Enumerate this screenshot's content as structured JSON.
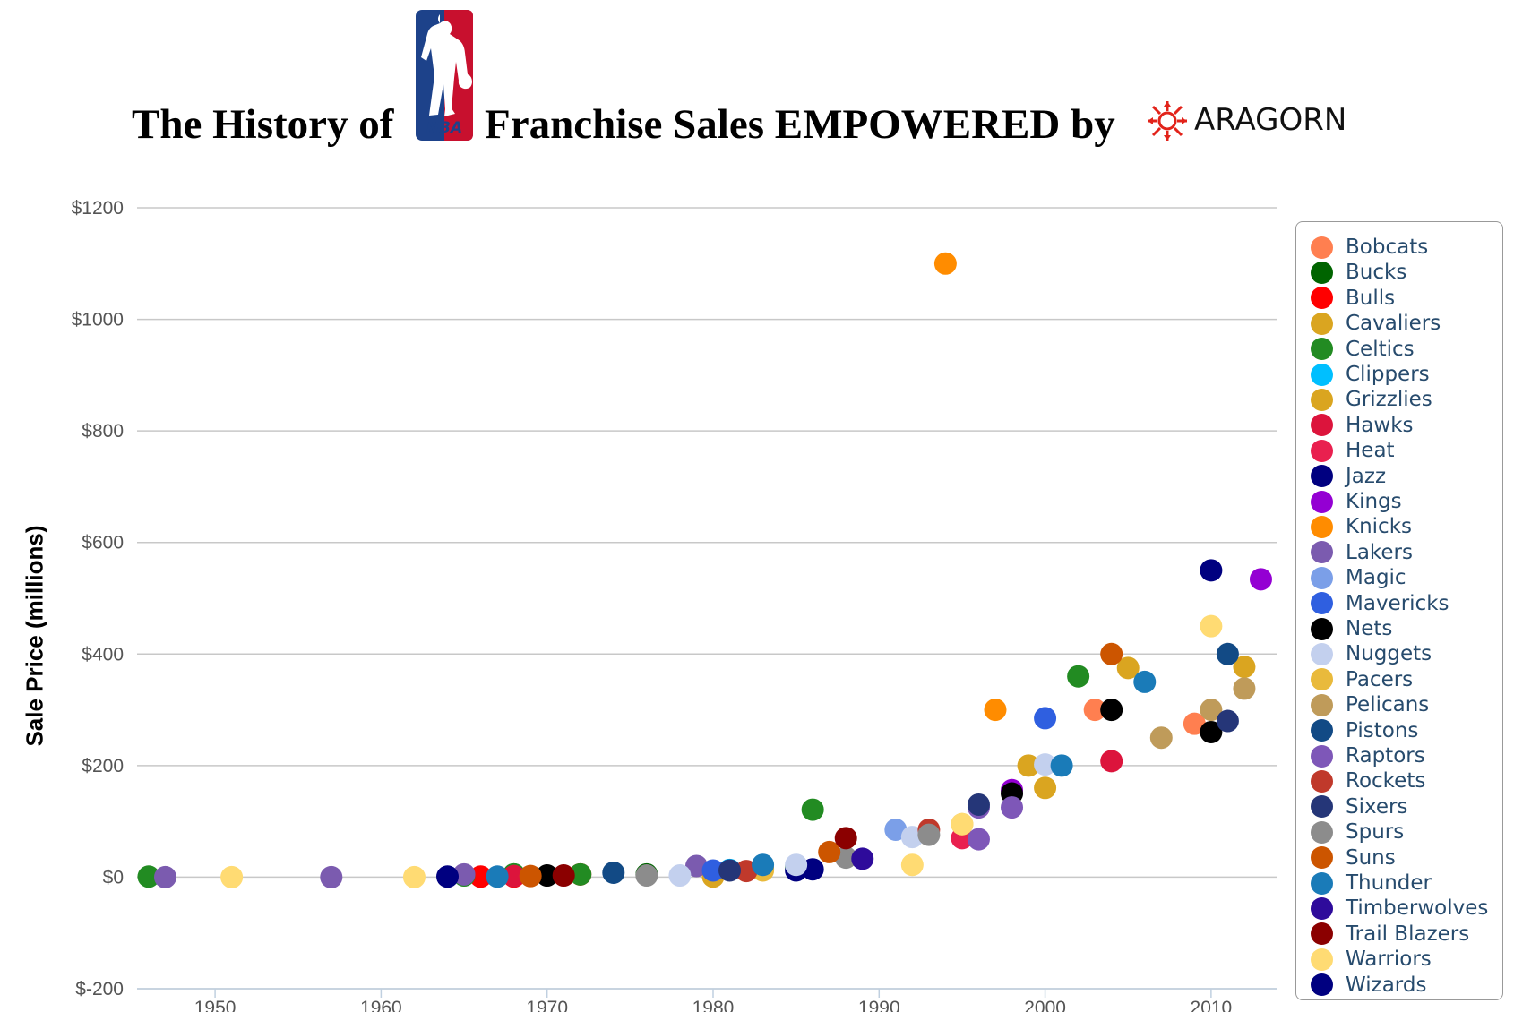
{
  "header": {
    "title_part1": "The History of",
    "title_part2": "Franchise Sales EMPOWERED by",
    "nba_logo_text": "NBA",
    "aragorn_logo_text": "ARAGORN"
  },
  "chart_data": {
    "type": "scatter",
    "title": "The History of NBA Franchise Sales EMPOWERED by ARAGORN",
    "xlabel": "",
    "ylabel": "Sale Price (millions)",
    "xlim": [
      1945.3,
      2014
    ],
    "ylim": [
      -200,
      1200
    ],
    "xticks": [
      1950,
      1960,
      1970,
      1980,
      1990,
      2000,
      2010
    ],
    "yticks": [
      -200,
      0,
      200,
      400,
      600,
      800,
      1000,
      1200
    ],
    "ytick_labels": [
      "$-200",
      "$0",
      "$200",
      "$400",
      "$600",
      "$800",
      "$1000",
      "$1200"
    ],
    "grid": "horizontal",
    "legend_position": "right",
    "series": [
      {
        "name": "Bobcats",
        "color": "#FF7F50",
        "points": [
          [
            2003,
            300
          ],
          [
            2009,
            275
          ]
        ]
      },
      {
        "name": "Bucks",
        "color": "#006400",
        "points": [
          [
            1968,
            5
          ],
          [
            1976,
            5
          ],
          [
            1985,
            18
          ]
        ]
      },
      {
        "name": "Bulls",
        "color": "#FF0000",
        "points": [
          [
            1966,
            1
          ],
          [
            1968,
            1
          ],
          [
            1972,
            5
          ]
        ]
      },
      {
        "name": "Cavaliers",
        "color": "#DAA520",
        "points": [
          [
            1980,
            1
          ],
          [
            1983,
            15
          ],
          [
            2005,
            375
          ]
        ]
      },
      {
        "name": "Celtics",
        "color": "#228B22",
        "points": [
          [
            1946,
            1
          ],
          [
            1965,
            3
          ],
          [
            1968,
            5
          ],
          [
            1972,
            5
          ],
          [
            1986,
            121
          ],
          [
            2002,
            360
          ]
        ]
      },
      {
        "name": "Clippers",
        "color": "#00BFFF",
        "points": [
          [
            1981,
            13
          ]
        ]
      },
      {
        "name": "Grizzlies",
        "color": "#DAA520",
        "points": [
          [
            1999,
            200
          ],
          [
            2000,
            160
          ],
          [
            2012,
            377
          ]
        ]
      },
      {
        "name": "Hawks",
        "color": "#DC143C",
        "points": [
          [
            1968,
            2
          ],
          [
            2004,
            208
          ]
        ]
      },
      {
        "name": "Heat",
        "color": "#E9204F",
        "points": [
          [
            1995,
            70
          ]
        ]
      },
      {
        "name": "Jazz",
        "color": "#000080",
        "points": [
          [
            1985,
            12
          ],
          [
            1986,
            14
          ]
        ]
      },
      {
        "name": "Kings",
        "color": "#9400D3",
        "points": [
          [
            1998,
            156
          ],
          [
            2013,
            534
          ]
        ]
      },
      {
        "name": "Knicks",
        "color": "#FF8C00",
        "points": [
          [
            1994,
            1100
          ],
          [
            1997,
            300
          ]
        ]
      },
      {
        "name": "Lakers",
        "color": "#7B5BAF",
        "points": [
          [
            1947,
            0
          ],
          [
            1957,
            0
          ],
          [
            1965,
            5
          ],
          [
            1979,
            20
          ]
        ]
      },
      {
        "name": "Magic",
        "color": "#7B9FE8",
        "points": [
          [
            1991,
            85
          ]
        ]
      },
      {
        "name": "Mavericks",
        "color": "#2F5FE0",
        "points": [
          [
            1980,
            12
          ],
          [
            2000,
            285
          ]
        ]
      },
      {
        "name": "Nets",
        "color": "#000000",
        "points": [
          [
            1970,
            3
          ],
          [
            1998,
            150
          ],
          [
            2004,
            300
          ],
          [
            2010,
            260
          ]
        ]
      },
      {
        "name": "Nuggets",
        "color": "#C3D0EE",
        "points": [
          [
            1978,
            3
          ],
          [
            1985,
            22
          ],
          [
            1992,
            72
          ],
          [
            2000,
            202
          ]
        ]
      },
      {
        "name": "Pacers",
        "color": "#E9BA3C",
        "points": [
          [
            1983,
            12
          ],
          [
            1995,
            95
          ]
        ]
      },
      {
        "name": "Pelicans",
        "color": "#BF9B5A",
        "points": [
          [
            2007,
            250
          ],
          [
            2010,
            300
          ],
          [
            2012,
            338
          ]
        ]
      },
      {
        "name": "Pistons",
        "color": "#124A85",
        "points": [
          [
            1974,
            8
          ],
          [
            2011,
            400
          ]
        ]
      },
      {
        "name": "Raptors",
        "color": "#7E57B8",
        "points": [
          [
            1996,
            125
          ],
          [
            1998,
            125
          ],
          [
            1996,
            68
          ]
        ]
      },
      {
        "name": "Rockets",
        "color": "#C0392B",
        "points": [
          [
            1982,
            11
          ],
          [
            1993,
            85
          ]
        ]
      },
      {
        "name": "Sixers",
        "color": "#253678",
        "points": [
          [
            1981,
            12
          ],
          [
            1996,
            130
          ],
          [
            2011,
            280
          ]
        ]
      },
      {
        "name": "Spurs",
        "color": "#8C8C8C",
        "points": [
          [
            1976,
            3
          ],
          [
            1988,
            35
          ],
          [
            1993,
            76
          ]
        ]
      },
      {
        "name": "Suns",
        "color": "#CC5500",
        "points": [
          [
            1969,
            2
          ],
          [
            1987,
            45
          ],
          [
            2004,
            400
          ]
        ]
      },
      {
        "name": "Thunder",
        "color": "#1A7BB8",
        "points": [
          [
            1967,
            1
          ],
          [
            1983,
            22
          ],
          [
            2001,
            200
          ],
          [
            2006,
            350
          ]
        ]
      },
      {
        "name": "Timberwolves",
        "color": "#2E0B9B",
        "points": [
          [
            1989,
            33
          ]
        ]
      },
      {
        "name": "Trail Blazers",
        "color": "#8B0000",
        "points": [
          [
            1971,
            3
          ],
          [
            1988,
            70
          ]
        ]
      },
      {
        "name": "Warriors",
        "color": "#FFDB73",
        "points": [
          [
            1951,
            0
          ],
          [
            1962,
            0
          ],
          [
            1992,
            22
          ],
          [
            1995,
            95
          ],
          [
            2010,
            450
          ]
        ]
      },
      {
        "name": "Wizards",
        "color": "#000080",
        "points": [
          [
            1964,
            1
          ],
          [
            2010,
            550
          ]
        ]
      }
    ]
  }
}
